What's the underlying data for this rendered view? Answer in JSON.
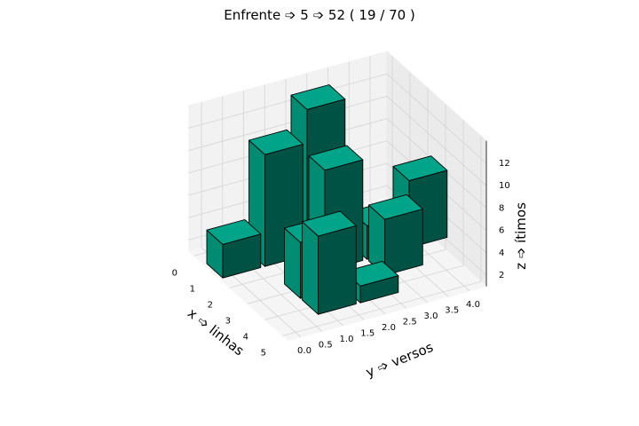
{
  "chart_data": {
    "type": "bar3d",
    "title": "Enfrente ➩ 5 ➩ 52 ( 19 / 70 )",
    "xlabel": "x ➩ linhas",
    "ylabel": "y ➩ versos",
    "zlabel": "z ➩ ítimos",
    "x_ticks": [
      "0",
      "1",
      "2",
      "3",
      "4",
      "5"
    ],
    "y_ticks": [
      "0.0",
      "0.5",
      "1.0",
      "1.5",
      "2.0",
      "2.5",
      "3.0",
      "3.5",
      "4.0"
    ],
    "z_ticks": [
      "2",
      "4",
      "6",
      "8",
      "10",
      "12"
    ],
    "xlim": [
      0,
      5
    ],
    "ylim": [
      0,
      4
    ],
    "zlim": [
      1,
      13
    ],
    "bar_color": "#00b294",
    "bars": [
      {
        "x": 0,
        "y": 0,
        "z": 3
      },
      {
        "x": 0,
        "y": 1,
        "z": 10
      },
      {
        "x": 0,
        "y": 2,
        "z": 13
      },
      {
        "x": 1,
        "y": 3,
        "z": 3
      },
      {
        "x": 1,
        "y": 4,
        "z": 6
      },
      {
        "x": 1,
        "y": 2,
        "z": 9
      },
      {
        "x": 2,
        "y": 1,
        "z": 5
      },
      {
        "x": 2,
        "y": 3,
        "z": 5
      },
      {
        "x": 3,
        "y": 1,
        "z": 7
      },
      {
        "x": 3,
        "y": 2,
        "z": 1.5
      }
    ]
  }
}
